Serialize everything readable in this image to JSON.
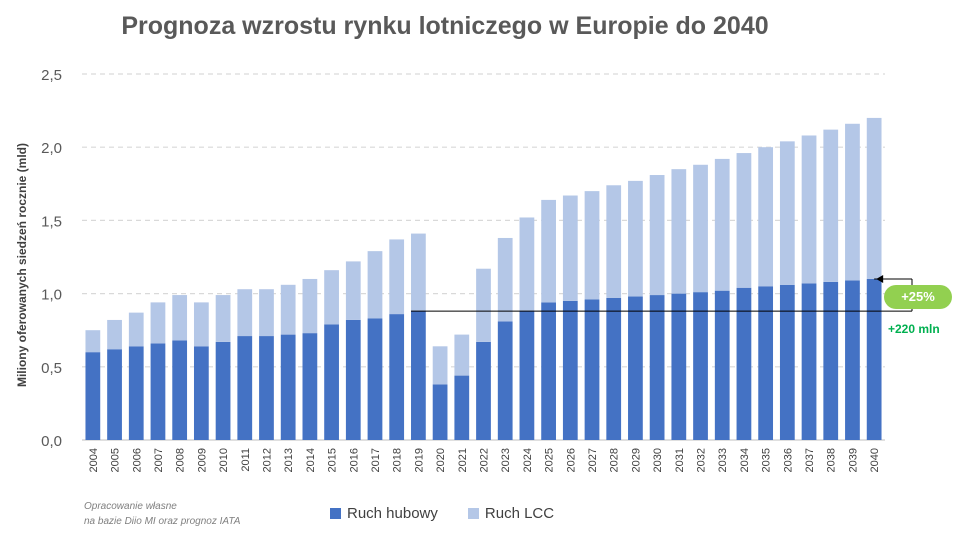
{
  "chart_data": {
    "type": "bar",
    "stacked": true,
    "title": "Prognoza wzrostu rynku lotniczego w Europie do 2040",
    "xlabel": "",
    "ylabel": "Miliony oferowanych siedzeń rocznie (mld)",
    "ylim": [
      0,
      2.5
    ],
    "yticks": [
      "0,0",
      "0,5",
      "1,0",
      "1,5",
      "2,0",
      "2,5"
    ],
    "ytick_values": [
      0,
      0.5,
      1.0,
      1.5,
      2.0,
      2.5
    ],
    "grid": true,
    "legend_position": "bottom",
    "categories": [
      "2004",
      "2005",
      "2006",
      "2007",
      "2008",
      "2009",
      "2010",
      "2011",
      "2012",
      "2013",
      "2014",
      "2015",
      "2016",
      "2017",
      "2018",
      "2019",
      "2020",
      "2021",
      "2022",
      "2023",
      "2024",
      "2025",
      "2026",
      "2027",
      "2028",
      "2029",
      "2030",
      "2031",
      "2032",
      "2033",
      "2034",
      "2035",
      "2036",
      "2037",
      "2038",
      "2039",
      "2040"
    ],
    "series": [
      {
        "name": "Ruch hubowy",
        "color": "#4472c4",
        "values": [
          0.6,
          0.62,
          0.64,
          0.66,
          0.68,
          0.64,
          0.67,
          0.71,
          0.71,
          0.72,
          0.73,
          0.79,
          0.82,
          0.83,
          0.86,
          0.88,
          0.38,
          0.44,
          0.67,
          0.81,
          0.88,
          0.94,
          0.95,
          0.96,
          0.97,
          0.98,
          0.99,
          1.0,
          1.01,
          1.02,
          1.04,
          1.05,
          1.06,
          1.07,
          1.08,
          1.09,
          1.1
        ]
      },
      {
        "name": "Ruch LCC",
        "color": "#b4c7e7",
        "values": [
          0.15,
          0.2,
          0.23,
          0.28,
          0.31,
          0.3,
          0.32,
          0.32,
          0.32,
          0.34,
          0.37,
          0.37,
          0.4,
          0.46,
          0.51,
          0.53,
          0.26,
          0.28,
          0.5,
          0.57,
          0.64,
          0.7,
          0.72,
          0.74,
          0.77,
          0.79,
          0.82,
          0.85,
          0.87,
          0.9,
          0.92,
          0.95,
          0.98,
          1.01,
          1.04,
          1.07,
          1.1
        ]
      }
    ],
    "annotations": {
      "reference_value": 0.88,
      "growth_label": "+25%",
      "growth_color": "#92d050",
      "increment_label": "+220 mln",
      "increment_color": "#00b050"
    }
  },
  "source_note": {
    "line1": "Opracowanie własne",
    "line2": "na bazie Diio MI oraz prognoz IATA"
  }
}
